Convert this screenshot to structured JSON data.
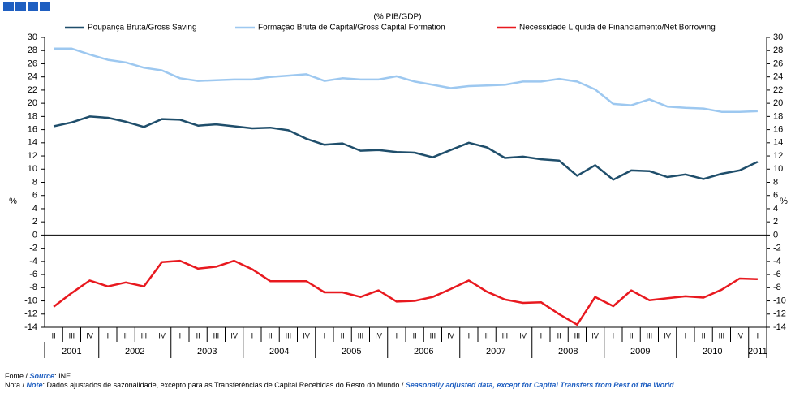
{
  "chart_data": {
    "type": "line",
    "subtitle": "(% PIB/GDP)",
    "y_axis_label": "%",
    "y2_axis_label": "%",
    "categories": [
      "II",
      "III",
      "IV",
      "I",
      "II",
      "III",
      "IV",
      "I",
      "II",
      "III",
      "IV",
      "I",
      "II",
      "III",
      "IV",
      "I",
      "II",
      "III",
      "IV",
      "I",
      "II",
      "III",
      "IV",
      "I",
      "II",
      "III",
      "IV",
      "I",
      "II",
      "III",
      "IV",
      "I",
      "II",
      "III",
      "IV",
      "I",
      "II",
      "III",
      "IV",
      "I"
    ],
    "years": [
      "2001",
      "2002",
      "2003",
      "2004",
      "2005",
      "2006",
      "2007",
      "2008",
      "2009",
      "2010",
      "2011"
    ],
    "series": [
      {
        "name": "Poupança Bruta/Gross Saving",
        "color": "#1f4e6b",
        "values": [
          16.5,
          17.1,
          18.0,
          17.8,
          17.2,
          16.4,
          17.6,
          17.5,
          16.6,
          16.8,
          16.5,
          16.2,
          16.3,
          15.9,
          14.6,
          13.7,
          13.9,
          12.8,
          12.9,
          12.6,
          12.5,
          11.8,
          12.9,
          14.0,
          13.3,
          11.7,
          11.9,
          11.5,
          11.3,
          9.0,
          10.6,
          8.4,
          9.8,
          9.7,
          8.8,
          9.2,
          8.5,
          9.3,
          9.8,
          11.1
        ]
      },
      {
        "name": "Formação Bruta de Capital/Gross Capital Formation",
        "color": "#9dc8f0",
        "values": [
          28.3,
          28.3,
          27.4,
          26.6,
          26.2,
          25.4,
          25.0,
          23.8,
          23.4,
          23.5,
          23.6,
          23.6,
          24.0,
          24.2,
          24.4,
          23.4,
          23.8,
          23.6,
          23.6,
          24.1,
          23.3,
          22.8,
          22.3,
          22.6,
          22.7,
          22.8,
          23.3,
          23.3,
          23.7,
          23.3,
          22.1,
          19.9,
          19.7,
          20.6,
          19.5,
          19.3,
          19.2,
          18.7,
          18.7,
          18.8
        ]
      },
      {
        "name": "Necessidade Líquida de Financiamento/Net Borrowing",
        "color": "#e8191f",
        "values": [
          -10.9,
          -8.8,
          -6.9,
          -7.8,
          -7.2,
          -7.8,
          -4.1,
          -3.9,
          -5.1,
          -4.8,
          -3.9,
          -5.2,
          -7.0,
          -7.0,
          -7.0,
          -8.7,
          -8.7,
          -9.4,
          -8.4,
          -10.1,
          -10.0,
          -9.4,
          -8.2,
          -6.9,
          -8.6,
          -9.8,
          -10.3,
          -10.2,
          -12.0,
          -13.6,
          -9.4,
          -10.8,
          -8.4,
          -9.9,
          -9.6,
          -9.3,
          -9.5,
          -8.3,
          -6.6,
          -6.7
        ]
      }
    ],
    "ylim": [
      -14,
      30
    ],
    "yticks": [
      -14,
      -12,
      -10,
      -8,
      -6,
      -4,
      -2,
      0,
      2,
      4,
      6,
      8,
      10,
      12,
      14,
      16,
      18,
      20,
      22,
      24,
      26,
      28,
      30
    ],
    "y2lim": [
      -14,
      30
    ],
    "y2ticks": [
      -14,
      -12,
      -10,
      -8,
      -6,
      -4,
      -2,
      0,
      2,
      4,
      6,
      8,
      10,
      12,
      14,
      16,
      18,
      20,
      22,
      24,
      26,
      28,
      30
    ],
    "grid": false,
    "legend": "top",
    "source": {
      "label": "Fonte /",
      "label_en": "Source",
      "text": "INE"
    },
    "note": {
      "label": "Nota /",
      "label_en": "Note",
      "text_pt": "Dados ajustados de sazonalidade, excepto para as Transferências de Capital Recebidas do Resto do Mundo /",
      "text_en": "Seasonally adjusted data, except for Capital Transfers from Rest of the World"
    }
  }
}
